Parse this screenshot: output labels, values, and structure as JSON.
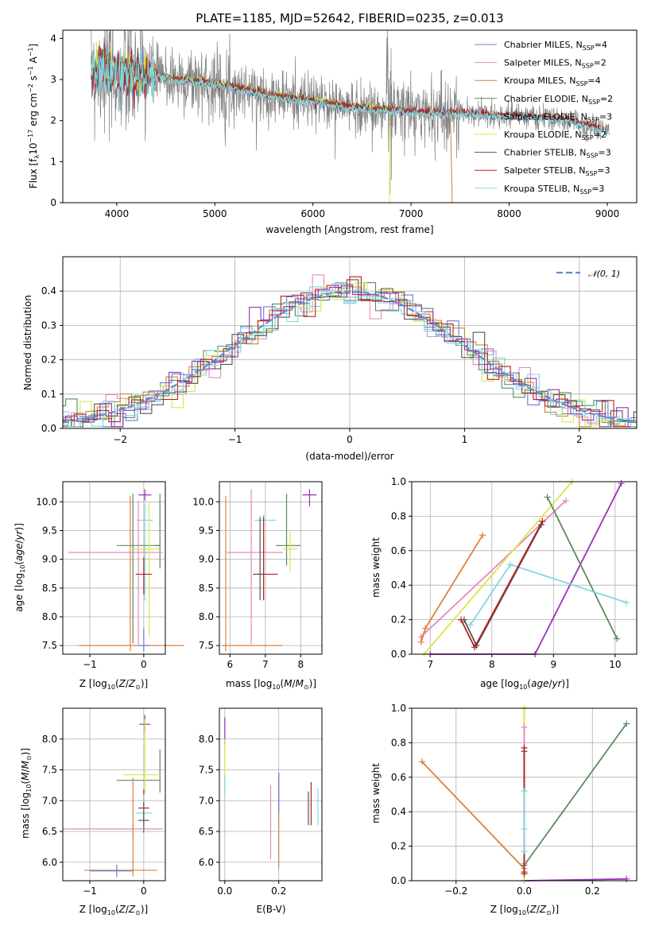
{
  "colors": {
    "chabrier_miles": "#6b7bd6",
    "salpeter_miles": "#e58ac0",
    "kroupa_miles": "#c8862f",
    "chabrier_elodie": "#5b8a5c",
    "salpeter_elodie": "#7fd3e0",
    "kroupa_elodie": "#d8e64a",
    "chabrier_stelib": "#555555",
    "salpeter_stelib": "#b22222",
    "kroupa_stelib": "#80d8e0",
    "purple": "#9c2fb8",
    "orange": "#e0803a",
    "data": "#808080",
    "normal": "#5b8fd6"
  },
  "chart_data": [
    {
      "id": "spectrum",
      "type": "line",
      "title": "PLATE=1185, MJD=52642, FIBERID=0235, z=0.013",
      "xlabel": "wavelength [Angstrom, rest frame]",
      "ylabel": "Flux [f_λ 10^-17 erg cm^-2 s^-1 A^-1]",
      "xlim": [
        3450,
        9300
      ],
      "ylim": [
        0,
        4.2
      ],
      "xticks": [
        4000,
        5000,
        6000,
        7000,
        8000,
        9000
      ],
      "yticks": [
        0,
        1,
        2,
        3,
        4
      ],
      "legend_position": "top-right",
      "legend": [
        "Chabrier MILES, N_SSP=4",
        "Salpeter MILES, N_SSP=2",
        "Kroupa MILES, N_SSP=4",
        "Chabrier ELODIE, N_SSP=2",
        "Salpeter ELODIE, N_SSP=3",
        "Kroupa ELODIE, N_SSP=2",
        "Chabrier STELIB, N_SSP=3",
        "Salpeter STELIB, N_SSP=3",
        "Kroupa STELIB, N_SSP=3"
      ],
      "model_continuum": {
        "x": [
          3750,
          3850,
          4000,
          4200,
          4500,
          4800,
          5000,
          5300,
          5600,
          5900,
          6200,
          6500,
          6800,
          7100,
          7400,
          7800,
          8200,
          8600,
          9000
        ],
        "y": [
          3.2,
          3.3,
          3.15,
          3.1,
          3.05,
          2.95,
          2.9,
          2.75,
          2.6,
          2.5,
          2.4,
          2.3,
          2.25,
          2.2,
          2.2,
          2.15,
          2.1,
          2.0,
          1.75
        ]
      }
    },
    {
      "id": "residuals",
      "type": "line",
      "xlabel": "(data-model)/error",
      "ylabel": "Normed distribution",
      "xlim": [
        -2.5,
        2.5
      ],
      "ylim": [
        0,
        0.5
      ],
      "xticks": [
        -2,
        -1,
        0,
        1,
        2
      ],
      "yticks": [
        0.0,
        0.1,
        0.2,
        0.3,
        0.4
      ],
      "legend": [
        "𝒩(0, 1)"
      ],
      "legend_position": "top-right"
    },
    {
      "id": "age_vs_Z",
      "type": "scatter",
      "xlabel": "Z [log10(Z/Z⊙)]",
      "ylabel": "age [log10(age/yr)]",
      "xlim": [
        -1.5,
        0.4
      ],
      "ylim": [
        7.35,
        10.35
      ],
      "xticks": [
        -1,
        0
      ],
      "yticks": [
        7.5,
        8.0,
        8.5,
        9.0,
        9.5,
        10.0
      ]
    },
    {
      "id": "age_vs_mass",
      "type": "scatter",
      "xlabel": "mass [log10(M/M⊙)]",
      "xlim": [
        5.7,
        8.6
      ],
      "ylim": [
        7.35,
        10.35
      ],
      "xticks": [
        6,
        7,
        8
      ],
      "yticks": [
        7.5,
        8.0,
        8.5,
        9.0,
        9.5,
        10.0
      ]
    },
    {
      "id": "mw_vs_age",
      "type": "line",
      "xlabel": "age [log10(age/yr)]",
      "ylabel": "mass weight",
      "xlim": [
        6.7,
        10.35
      ],
      "ylim": [
        0,
        1
      ],
      "xticks": [
        7,
        8,
        9,
        10
      ],
      "yticks": [
        0.0,
        0.2,
        0.4,
        0.6,
        0.8,
        1.0
      ]
    },
    {
      "id": "mass_vs_Z",
      "type": "scatter",
      "xlabel": "Z [log10(Z/Z⊙)]",
      "ylabel": "mass [log10(M/M⊙)]",
      "xlim": [
        -1.5,
        0.4
      ],
      "ylim": [
        5.7,
        8.5
      ],
      "xticks": [
        -1,
        0
      ],
      "yticks": [
        6.0,
        6.5,
        7.0,
        7.5,
        8.0
      ]
    },
    {
      "id": "mass_vs_ebv",
      "type": "scatter",
      "xlabel": "E(B-V)",
      "xlim": [
        -0.02,
        0.36
      ],
      "ylim": [
        5.7,
        8.5
      ],
      "xticks": [
        0.0,
        0.2
      ],
      "yticks": [
        6.0,
        6.5,
        7.0,
        7.5,
        8.0
      ]
    },
    {
      "id": "mw_vs_Z",
      "type": "line",
      "xlabel": "Z [log10(Z/Z⊙)]",
      "ylabel": "mass weight",
      "xlim": [
        -0.33,
        0.33
      ],
      "ylim": [
        0,
        1
      ],
      "xticks": [
        -0.2,
        0.0,
        0.2
      ],
      "yticks": [
        0.0,
        0.2,
        0.4,
        0.6,
        0.8,
        1.0
      ]
    }
  ]
}
